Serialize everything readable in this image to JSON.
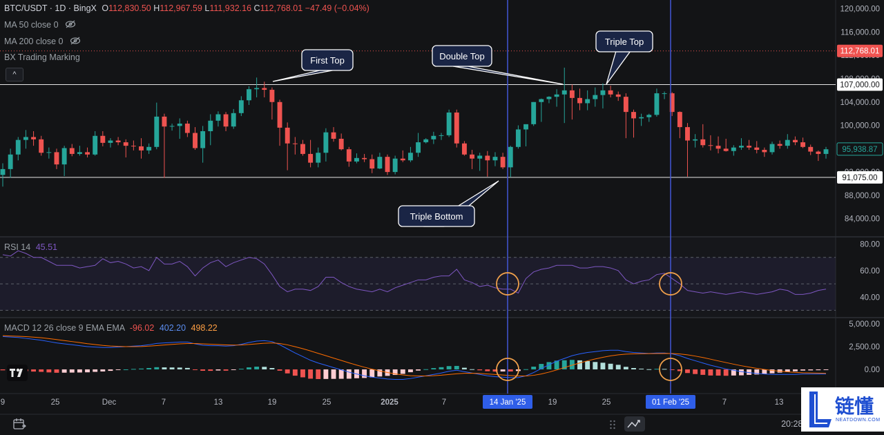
{
  "header": {
    "symbol": "BTC/USDT",
    "timeframe": "1D",
    "exchange": "BingX",
    "ohlc": {
      "o_label": "O",
      "o": "112,830.50",
      "h_label": "H",
      "h": "112,967.59",
      "l_label": "L",
      "l": "111,932.16",
      "c_label": "C",
      "c": "112,768.01",
      "change": "−47.49 (−0.04%)"
    }
  },
  "indicators": [
    {
      "label": "MA 50 close 0",
      "icon": "eye-off-icon"
    },
    {
      "label": "MA 200 close 0",
      "icon": "eye-off-icon"
    },
    {
      "label": "BX Trading Marking"
    }
  ],
  "collapse_symbol": "^",
  "price_axis": {
    "ticks": [
      "120,000.00",
      "116,000.00",
      "112,000.00",
      "108,000.00",
      "104,000.00",
      "100,000.00",
      "96,000.00",
      "92,000.00",
      "88,000.00",
      "84,000.00"
    ],
    "current_price": "112,768.01",
    "last_close_label": "95,938.87",
    "resistance_label": "107,000.00",
    "support_label": "91,075.00"
  },
  "annotations": {
    "first_top": "First Top",
    "double_top": "Double Top",
    "triple_top": "Triple Top",
    "triple_bottom": "Triple Bottom"
  },
  "rsi": {
    "label": "RSI 14",
    "value": "45.51",
    "ticks": [
      "80.00",
      "60.00",
      "40.00"
    ]
  },
  "macd": {
    "label": "MACD 12 26 close 9 EMA EMA",
    "hist": "-96.02",
    "macd": "402.20",
    "signal": "498.22",
    "ticks": [
      "5,000.00",
      "2,500.00",
      "0.00"
    ]
  },
  "time_axis": {
    "ticks": [
      "9",
      "25",
      "Dec",
      "7",
      "13",
      "19",
      "25",
      "2025",
      "7",
      "19",
      "25",
      "7",
      "13"
    ],
    "marker1": "14 Jan '25",
    "marker2": "01 Feb '25"
  },
  "footer": {
    "clock": "20:28:38 UTC-4"
  },
  "watermark": {
    "text": "链懂",
    "sub": "NEATDOWN.COM"
  },
  "colors": {
    "up": "#26a69a",
    "down": "#ef5350",
    "vline": "#3f51b5",
    "rsi": "#7e57c2",
    "macd": "#2962ff",
    "signal": "#ff6d00"
  },
  "chart_data": {
    "type": "candlestick",
    "title": "BTC/USDT · 1D · BingX",
    "y_range": [
      81000,
      121500
    ],
    "resistance": 107000,
    "support": 91075,
    "candles": [
      {
        "o": 91500,
        "h": 93500,
        "l": 89500,
        "c": 92500
      },
      {
        "o": 92500,
        "h": 96000,
        "l": 91000,
        "c": 95000
      },
      {
        "o": 95000,
        "h": 98000,
        "l": 94000,
        "c": 97500
      },
      {
        "o": 97500,
        "h": 99200,
        "l": 96000,
        "c": 98000
      },
      {
        "o": 98000,
        "h": 99000,
        "l": 96500,
        "c": 97600
      },
      {
        "o": 97600,
        "h": 98200,
        "l": 94800,
        "c": 95300
      },
      {
        "o": 95300,
        "h": 96200,
        "l": 94300,
        "c": 95400
      },
      {
        "o": 95400,
        "h": 96000,
        "l": 92500,
        "c": 93300
      },
      {
        "o": 93300,
        "h": 96500,
        "l": 91300,
        "c": 96100
      },
      {
        "o": 96100,
        "h": 96800,
        "l": 94700,
        "c": 95100
      },
      {
        "o": 95100,
        "h": 96500,
        "l": 94800,
        "c": 95400
      },
      {
        "o": 95400,
        "h": 96200,
        "l": 94500,
        "c": 95000
      },
      {
        "o": 95000,
        "h": 99000,
        "l": 94800,
        "c": 98200
      },
      {
        "o": 98200,
        "h": 99000,
        "l": 96400,
        "c": 97000
      },
      {
        "o": 97000,
        "h": 97800,
        "l": 96200,
        "c": 97400
      },
      {
        "o": 97400,
        "h": 98000,
        "l": 96600,
        "c": 97100
      },
      {
        "o": 97100,
        "h": 97600,
        "l": 94500,
        "c": 96500
      },
      {
        "o": 96500,
        "h": 97400,
        "l": 95700,
        "c": 96400
      },
      {
        "o": 96400,
        "h": 97800,
        "l": 94300,
        "c": 95700
      },
      {
        "o": 95700,
        "h": 96900,
        "l": 95100,
        "c": 96300
      },
      {
        "o": 96300,
        "h": 103900,
        "l": 95900,
        "c": 101500
      },
      {
        "o": 101500,
        "h": 102000,
        "l": 91000,
        "c": 99800
      },
      {
        "o": 99800,
        "h": 100300,
        "l": 99100,
        "c": 99900
      },
      {
        "o": 99900,
        "h": 101200,
        "l": 97700,
        "c": 100300
      },
      {
        "o": 100300,
        "h": 100800,
        "l": 98000,
        "c": 98700
      },
      {
        "o": 98700,
        "h": 99700,
        "l": 95800,
        "c": 96100
      },
      {
        "o": 96100,
        "h": 99900,
        "l": 93600,
        "c": 99000
      },
      {
        "o": 99000,
        "h": 101900,
        "l": 96600,
        "c": 100800
      },
      {
        "o": 100800,
        "h": 102400,
        "l": 99800,
        "c": 101900
      },
      {
        "o": 101900,
        "h": 102300,
        "l": 99000,
        "c": 99800
      },
      {
        "o": 99800,
        "h": 102800,
        "l": 99400,
        "c": 102100
      },
      {
        "o": 102100,
        "h": 105000,
        "l": 101600,
        "c": 104300
      },
      {
        "o": 104300,
        "h": 106700,
        "l": 103500,
        "c": 106200
      },
      {
        "o": 106200,
        "h": 108200,
        "l": 104800,
        "c": 106400
      },
      {
        "o": 106400,
        "h": 107500,
        "l": 104800,
        "c": 106100
      },
      {
        "o": 106100,
        "h": 106500,
        "l": 101000,
        "c": 104000
      },
      {
        "o": 104000,
        "h": 104400,
        "l": 96500,
        "c": 99600
      },
      {
        "o": 99600,
        "h": 100500,
        "l": 92300,
        "c": 96900
      },
      {
        "o": 96900,
        "h": 98000,
        "l": 95000,
        "c": 96800
      },
      {
        "o": 96800,
        "h": 97500,
        "l": 94800,
        "c": 95100
      },
      {
        "o": 95100,
        "h": 97500,
        "l": 92800,
        "c": 93600
      },
      {
        "o": 93600,
        "h": 96200,
        "l": 92800,
        "c": 95300
      },
      {
        "o": 95300,
        "h": 99500,
        "l": 93800,
        "c": 98800
      },
      {
        "o": 98800,
        "h": 99700,
        "l": 97200,
        "c": 97700
      },
      {
        "o": 97700,
        "h": 98600,
        "l": 95700,
        "c": 95900
      },
      {
        "o": 95900,
        "h": 96300,
        "l": 92900,
        "c": 93800
      },
      {
        "o": 93800,
        "h": 95200,
        "l": 93500,
        "c": 94400
      },
      {
        "o": 94400,
        "h": 95100,
        "l": 93700,
        "c": 94200
      },
      {
        "o": 94200,
        "h": 95000,
        "l": 91800,
        "c": 92600
      },
      {
        "o": 92600,
        "h": 95300,
        "l": 92500,
        "c": 94600
      },
      {
        "o": 94600,
        "h": 95000,
        "l": 91500,
        "c": 92000
      },
      {
        "o": 92000,
        "h": 94800,
        "l": 91600,
        "c": 94300
      },
      {
        "o": 94300,
        "h": 95700,
        "l": 93700,
        "c": 94000
      },
      {
        "o": 94000,
        "h": 96300,
        "l": 93700,
        "c": 95300
      },
      {
        "o": 95300,
        "h": 98700,
        "l": 94600,
        "c": 97100
      },
      {
        "o": 97100,
        "h": 97800,
        "l": 96900,
        "c": 97600
      },
      {
        "o": 97600,
        "h": 98900,
        "l": 96800,
        "c": 98200
      },
      {
        "o": 98200,
        "h": 98700,
        "l": 97500,
        "c": 98300
      },
      {
        "o": 98300,
        "h": 102700,
        "l": 98000,
        "c": 102200
      },
      {
        "o": 102200,
        "h": 102700,
        "l": 96200,
        "c": 96900
      },
      {
        "o": 96900,
        "h": 97300,
        "l": 94800,
        "c": 95000
      },
      {
        "o": 95000,
        "h": 95800,
        "l": 92500,
        "c": 94300
      },
      {
        "o": 94300,
        "h": 95300,
        "l": 92200,
        "c": 94800
      },
      {
        "o": 94800,
        "h": 95600,
        "l": 91200,
        "c": 94000
      },
      {
        "o": 94000,
        "h": 95400,
        "l": 93000,
        "c": 94600
      },
      {
        "o": 94600,
        "h": 95300,
        "l": 92500,
        "c": 92800
      },
      {
        "o": 92800,
        "h": 96500,
        "l": 91100,
        "c": 96300
      },
      {
        "o": 96300,
        "h": 100000,
        "l": 96000,
        "c": 99300
      },
      {
        "o": 99300,
        "h": 100000,
        "l": 96400,
        "c": 100200
      },
      {
        "o": 100200,
        "h": 104000,
        "l": 99900,
        "c": 104000
      },
      {
        "o": 104000,
        "h": 104600,
        "l": 100600,
        "c": 104500
      },
      {
        "o": 104500,
        "h": 105000,
        "l": 103800,
        "c": 104900
      },
      {
        "o": 104900,
        "h": 106200,
        "l": 103200,
        "c": 105300
      },
      {
        "o": 105300,
        "h": 109900,
        "l": 100400,
        "c": 106000
      },
      {
        "o": 106000,
        "h": 107000,
        "l": 101000,
        "c": 104700
      },
      {
        "o": 104700,
        "h": 106300,
        "l": 102600,
        "c": 103800
      },
      {
        "o": 103800,
        "h": 106000,
        "l": 102600,
        "c": 104500
      },
      {
        "o": 104500,
        "h": 106500,
        "l": 103200,
        "c": 105200
      },
      {
        "o": 105200,
        "h": 107200,
        "l": 102900,
        "c": 106000
      },
      {
        "o": 106000,
        "h": 106800,
        "l": 104800,
        "c": 105300
      },
      {
        "o": 105300,
        "h": 105800,
        "l": 104200,
        "c": 104900
      },
      {
        "o": 104900,
        "h": 105500,
        "l": 97800,
        "c": 102300
      },
      {
        "o": 102300,
        "h": 102700,
        "l": 97900,
        "c": 101200
      },
      {
        "o": 101200,
        "h": 102000,
        "l": 99900,
        "c": 101400
      },
      {
        "o": 101400,
        "h": 102000,
        "l": 100600,
        "c": 101800
      },
      {
        "o": 101800,
        "h": 106300,
        "l": 101500,
        "c": 105500
      },
      {
        "o": 105500,
        "h": 105800,
        "l": 104500,
        "c": 105500
      },
      {
        "o": 105500,
        "h": 105700,
        "l": 101600,
        "c": 102300
      },
      {
        "o": 102300,
        "h": 102400,
        "l": 97800,
        "c": 99700
      },
      {
        "o": 99700,
        "h": 100400,
        "l": 91200,
        "c": 97400
      },
      {
        "o": 97400,
        "h": 98500,
        "l": 96200,
        "c": 97600
      },
      {
        "o": 97600,
        "h": 100200,
        "l": 96200,
        "c": 96600
      },
      {
        "o": 96600,
        "h": 98300,
        "l": 95700,
        "c": 96500
      },
      {
        "o": 96500,
        "h": 98100,
        "l": 95200,
        "c": 96000
      },
      {
        "o": 96000,
        "h": 97700,
        "l": 95500,
        "c": 95600
      },
      {
        "o": 95600,
        "h": 96600,
        "l": 94800,
        "c": 96200
      },
      {
        "o": 96200,
        "h": 97800,
        "l": 95800,
        "c": 96500
      },
      {
        "o": 96500,
        "h": 97500,
        "l": 95800,
        "c": 96200
      },
      {
        "o": 96200,
        "h": 97300,
        "l": 95200,
        "c": 95800
      },
      {
        "o": 95800,
        "h": 96200,
        "l": 94600,
        "c": 95400
      },
      {
        "o": 95400,
        "h": 97200,
        "l": 95000,
        "c": 96800
      },
      {
        "o": 96800,
        "h": 97400,
        "l": 96000,
        "c": 96500
      },
      {
        "o": 96500,
        "h": 98500,
        "l": 96000,
        "c": 97500
      },
      {
        "o": 97500,
        "h": 98100,
        "l": 96600,
        "c": 97100
      },
      {
        "o": 97100,
        "h": 97900,
        "l": 96100,
        "c": 96300
      },
      {
        "o": 96300,
        "h": 96700,
        "l": 94900,
        "c": 95500
      },
      {
        "o": 95500,
        "h": 95700,
        "l": 93900,
        "c": 95100
      },
      {
        "o": 95100,
        "h": 96300,
        "l": 94300,
        "c": 95900
      }
    ],
    "rsi": {
      "values": [
        72,
        71,
        75,
        73,
        70,
        70,
        67,
        64,
        64,
        64,
        62,
        63,
        64,
        69,
        66,
        67,
        65,
        62,
        63,
        60,
        70,
        65,
        65,
        67,
        63,
        56,
        62,
        66,
        68,
        63,
        66,
        68,
        70,
        69,
        65,
        57,
        48,
        44,
        46,
        46,
        45,
        48,
        55,
        55,
        51,
        48,
        46,
        45,
        44,
        46,
        44,
        47,
        49,
        51,
        53,
        53,
        55,
        56,
        56,
        61,
        53,
        51,
        48,
        49,
        47,
        46,
        46,
        43,
        54,
        59,
        61,
        62,
        64,
        64,
        64,
        62,
        62,
        63,
        63,
        62,
        60,
        53,
        50,
        52,
        53,
        57,
        58,
        54,
        50,
        45,
        44,
        43,
        44,
        43,
        42,
        43,
        44,
        43,
        42,
        43,
        44,
        46,
        45,
        42,
        42,
        43,
        45,
        46
      ],
      "ylim": [
        25,
        85
      ],
      "levels": [
        70,
        50,
        30
      ]
    },
    "macd": {
      "macd": [
        3600,
        3550,
        3500,
        3400,
        3300,
        3200,
        3050,
        2900,
        2800,
        2700,
        2600,
        2500,
        2450,
        2400,
        2400,
        2450,
        2500,
        2550,
        2600,
        2700,
        2850,
        2900,
        2950,
        3000,
        3000,
        2800,
        2650,
        2600,
        2600,
        2550,
        2600,
        2750,
        2950,
        3100,
        3150,
        3050,
        2700,
        2250,
        1800,
        1400,
        1000,
        700,
        450,
        200,
        -50,
        -300,
        -500,
        -700,
        -850,
        -950,
        -1050,
        -1100,
        -1100,
        -1000,
        -850,
        -700,
        -550,
        -400,
        -200,
        -100,
        -250,
        -400,
        -550,
        -700,
        -800,
        -850,
        -900,
        -900,
        -700,
        -350,
        100,
        500,
        900,
        1200,
        1500,
        1700,
        1850,
        1950,
        2050,
        2100,
        2100,
        1950,
        1850,
        1800,
        1750,
        1800,
        1800,
        1700,
        1500,
        1200,
        950,
        700,
        450,
        250,
        50,
        -100,
        -250,
        -350,
        -450,
        -500,
        -550,
        -550,
        -550,
        -550,
        -500,
        -500,
        -500,
        -500
      ],
      "signal": [
        3700,
        3660,
        3630,
        3590,
        3540,
        3470,
        3380,
        3270,
        3160,
        3050,
        2940,
        2820,
        2720,
        2630,
        2560,
        2520,
        2500,
        2500,
        2510,
        2550,
        2610,
        2680,
        2740,
        2800,
        2840,
        2840,
        2800,
        2760,
        2720,
        2690,
        2670,
        2680,
        2730,
        2800,
        2870,
        2900,
        2840,
        2690,
        2490,
        2270,
        2020,
        1760,
        1500,
        1240,
        980,
        720,
        470,
        240,
        30,
        -170,
        -340,
        -490,
        -610,
        -690,
        -720,
        -720,
        -690,
        -640,
        -560,
        -480,
        -430,
        -420,
        -450,
        -500,
        -560,
        -620,
        -670,
        -720,
        -720,
        -650,
        -500,
        -300,
        -60,
        200,
        460,
        710,
        940,
        1140,
        1320,
        1480,
        1600,
        1670,
        1700,
        1720,
        1730,
        1740,
        1750,
        1740,
        1690,
        1600,
        1460,
        1300,
        1120,
        930,
        750,
        570,
        400,
        250,
        110,
        -10,
        -120,
        -200,
        -270,
        -330,
        -370,
        -390,
        -410,
        -430
      ],
      "ylim": [
        -2500,
        5600
      ]
    }
  }
}
